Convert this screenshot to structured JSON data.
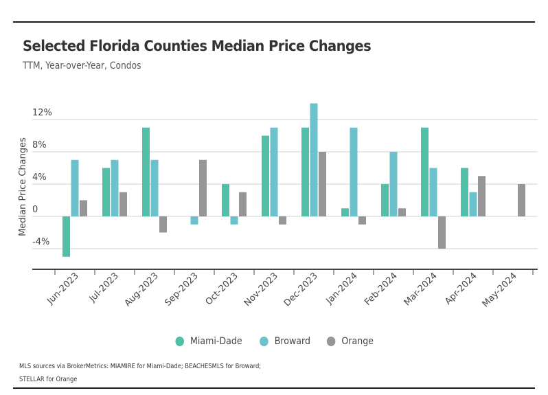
{
  "header": {
    "title": "Selected Florida Counties Median Price Changes",
    "subtitle": "TTM, Year-over-Year, Condos"
  },
  "footer": {
    "source_line1": "MLS sources via BrokerMetrics: MIAMIRE for Miami-Dade; BEACHESMLS for Broward;",
    "source_line2": "STELLAR for Orange"
  },
  "chart_data": {
    "type": "bar",
    "title": "Selected Florida Counties Median Price Changes",
    "subtitle": "TTM, Year-over-Year, Condos",
    "xlabel": "",
    "ylabel": "Median Price Changes",
    "ylim": [
      -6,
      14
    ],
    "yticks": [
      -4,
      0,
      4,
      8,
      12
    ],
    "ytick_labels": [
      "-4%",
      "0",
      "4%",
      "8%",
      "12%"
    ],
    "grid": true,
    "legend_position": "bottom-center",
    "categories": [
      "Jun-2023",
      "Jul-2023",
      "Aug-2023",
      "Sep-2023",
      "Oct-2023",
      "Nov-2023",
      "Dec-2023",
      "Jan-2024",
      "Feb-2024",
      "Mar-2024",
      "Apr-2024",
      "May-2024"
    ],
    "series": [
      {
        "name": "Miami-Dade",
        "color": "#52bfa9",
        "values": [
          -5,
          6,
          11,
          0,
          4,
          10,
          11,
          1,
          4,
          11,
          6,
          0
        ]
      },
      {
        "name": "Broward",
        "color": "#6bc2cc",
        "values": [
          7,
          7,
          7,
          -1,
          -1,
          11,
          14,
          11,
          8,
          6,
          3,
          0
        ]
      },
      {
        "name": "Orange",
        "color": "#969696",
        "values": [
          2,
          3,
          -2,
          7,
          3,
          -1,
          8,
          -1,
          1,
          -4,
          5,
          4
        ]
      }
    ]
  }
}
